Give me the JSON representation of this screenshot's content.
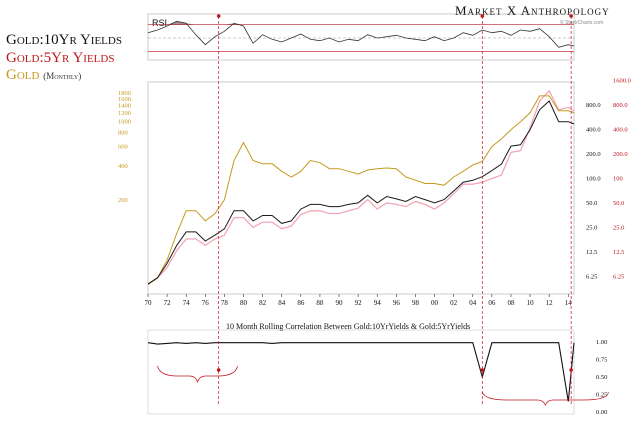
{
  "brand": {
    "name": "Market",
    "name2": "Anthropology",
    "glyph": "X"
  },
  "watermark": "© StockCharts.com",
  "legend": {
    "line1": "Gold:10Yr Yields",
    "line2": "Gold:5Yr Yields",
    "line3": "Gold",
    "line3_sub": "(Monthly)"
  },
  "colors": {
    "gold": "#c59a1e",
    "ratio10": "#1a1a1a",
    "ratio5": "#f2a7b6",
    "red": "#c0151b",
    "rsi_fill": "#8a5a5a"
  },
  "chart_data": [
    {
      "type": "line",
      "title": "RSI",
      "ylim": [
        20,
        80
      ],
      "reference_lines": [
        70,
        50,
        30
      ],
      "x": [
        1970,
        1971,
        1972,
        1973,
        1974,
        1975,
        1976,
        1977,
        1978,
        1979,
        1980,
        1981,
        1982,
        1983,
        1984,
        1985,
        1986,
        1987,
        1988,
        1989,
        1990,
        1991,
        1992,
        1993,
        1994,
        1995,
        1996,
        1997,
        1998,
        1999,
        2000,
        2001,
        2002,
        2003,
        2004,
        2005,
        2006,
        2007,
        2008,
        2009,
        2010,
        2011,
        2012,
        2013,
        2014,
        2014.6
      ],
      "series": [
        {
          "values": [
            58,
            62,
            68,
            75,
            72,
            55,
            40,
            52,
            60,
            72,
            68,
            42,
            55,
            48,
            44,
            50,
            56,
            48,
            46,
            50,
            44,
            48,
            46,
            55,
            50,
            52,
            54,
            50,
            48,
            46,
            52,
            46,
            50,
            58,
            54,
            62,
            58,
            60,
            54,
            62,
            60,
            64,
            52,
            36,
            40,
            38
          ]
        }
      ]
    },
    {
      "type": "line",
      "x_ticks": [
        "70",
        "72",
        "74",
        "76",
        "78",
        "80",
        "82",
        "84",
        "86",
        "88",
        "90",
        "92",
        "94",
        "96",
        "98",
        "00",
        "02",
        "04",
        "06",
        "08",
        "10",
        "12",
        "14"
      ],
      "yscale": "log",
      "left_ticks": [
        "1800",
        "1600",
        "1400",
        "1200",
        "1000",
        "800",
        "600",
        "400",
        "200"
      ],
      "right_ticks_black": [
        "800.0",
        "400.0",
        "200.0",
        "100.0",
        "50.0",
        "25.0",
        "12.5",
        "6.25"
      ],
      "right_ticks_red": [
        "1600.0",
        "800.0",
        "400.0",
        "200.0",
        "100",
        "50.0",
        "25.0",
        "12.5",
        "6.25"
      ],
      "x": [
        1970,
        1971,
        1972,
        1973,
        1974,
        1975,
        1976,
        1977,
        1978,
        1979,
        1980,
        1981,
        1982,
        1983,
        1984,
        1985,
        1986,
        1987,
        1988,
        1989,
        1990,
        1991,
        1992,
        1993,
        1994,
        1995,
        1996,
        1997,
        1998,
        1999,
        2000,
        2001,
        2002,
        2003,
        2004,
        2005,
        2006,
        2007,
        2008,
        2009,
        2010,
        2011,
        2012,
        2013,
        2014,
        2014.6
      ],
      "series": [
        {
          "name": "Gold",
          "values": [
            35,
            40,
            58,
            100,
            160,
            160,
            130,
            150,
            200,
            450,
            650,
            450,
            420,
            420,
            360,
            320,
            360,
            450,
            430,
            380,
            380,
            360,
            340,
            370,
            380,
            385,
            380,
            320,
            300,
            280,
            280,
            270,
            320,
            360,
            410,
            440,
            600,
            700,
            850,
            1000,
            1200,
            1700,
            1700,
            1250,
            1250,
            1200
          ]
        },
        {
          "name": "Gold:10Yr Yields",
          "values": [
            5,
            6,
            9,
            15,
            22,
            22,
            17,
            20,
            24,
            40,
            40,
            30,
            35,
            35,
            28,
            30,
            42,
            48,
            48,
            45,
            45,
            48,
            50,
            62,
            50,
            60,
            56,
            52,
            60,
            55,
            50,
            55,
            70,
            90,
            95,
            105,
            125,
            150,
            250,
            260,
            400,
            700,
            900,
            500,
            500,
            470
          ]
        },
        {
          "name": "Gold:5Yr Yields",
          "values": [
            5,
            6,
            8,
            13,
            18,
            18,
            15,
            18,
            20,
            33,
            33,
            25,
            29,
            29,
            24,
            26,
            36,
            40,
            40,
            37,
            37,
            40,
            43,
            55,
            42,
            50,
            48,
            45,
            52,
            48,
            42,
            50,
            65,
            85,
            85,
            90,
            100,
            110,
            210,
            220,
            420,
            900,
            1200,
            700,
            750,
            680
          ]
        }
      ]
    },
    {
      "type": "line",
      "title": "10 Month Rolling Correlation Between Gold:10YrYields & Gold:5YrYields",
      "ylim": [
        0,
        1
      ],
      "y_ticks": [
        "1.00",
        "0.75",
        "0.50",
        "0.25",
        "0.00"
      ],
      "x": [
        1970,
        1971,
        1972,
        1973,
        1974,
        1975,
        1976,
        1977,
        1978,
        1979,
        1980,
        1981,
        1982,
        1983,
        1984,
        1985,
        1986,
        1987,
        1988,
        1989,
        1990,
        1991,
        1992,
        1993,
        1994,
        1995,
        1996,
        1997,
        1998,
        1999,
        2000,
        2001,
        2002,
        2003,
        2004,
        2005,
        2006,
        2007,
        2008,
        2009,
        2010,
        2011,
        2012,
        2013,
        2014,
        2014.6
      ],
      "series": [
        {
          "values": [
            0.99,
            0.97,
            0.98,
            0.99,
            0.98,
            0.99,
            0.98,
            0.99,
            0.99,
            0.99,
            0.99,
            0.99,
            0.99,
            0.98,
            0.99,
            0.99,
            0.99,
            0.99,
            0.99,
            0.99,
            0.99,
            0.99,
            0.99,
            0.99,
            0.99,
            0.99,
            0.99,
            0.99,
            0.99,
            0.99,
            0.99,
            0.99,
            0.99,
            0.99,
            0.99,
            0.5,
            0.99,
            0.99,
            0.99,
            0.99,
            0.99,
            0.99,
            0.99,
            0.99,
            0.15,
            0.99
          ]
        }
      ],
      "markers_years": [
        1977.4,
        2005,
        2014.3
      ]
    }
  ]
}
